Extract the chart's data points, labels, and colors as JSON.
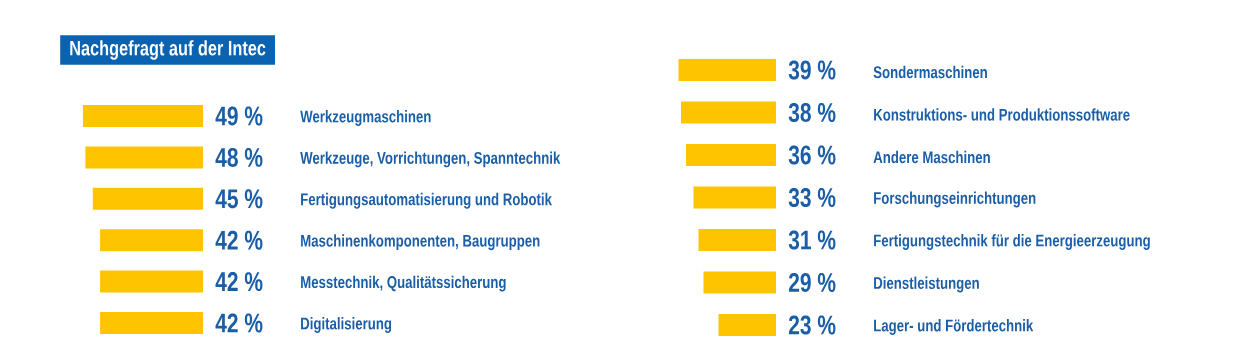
{
  "chart_data": [
    {
      "type": "bar",
      "orientation": "horizontal",
      "title": "Nachgefragt auf der Intec",
      "color": "#ffc400",
      "categories": [
        "Werkzeugmaschinen",
        "Werkzeuge, Vorrichtungen, Spanntechnik",
        "Fertigungsautomatisierung und Robotik",
        "Maschinenkomponenten, Baugruppen",
        "Messtechnik, Qualitätssicherung",
        "Digitalisierung"
      ],
      "values": [
        49,
        48,
        45,
        42,
        42,
        42
      ],
      "value_labels": [
        "49 %",
        "48 %",
        "45 %",
        "42 %",
        "42 %",
        "42 %"
      ]
    },
    {
      "type": "bar",
      "orientation": "horizontal",
      "color": "#ffc400",
      "categories": [
        "Sondermaschinen",
        "Konstruktions- und Produktionssoftware",
        "Andere Maschinen",
        "Forschungseinrichtungen",
        "Fertigungstechnik für die Energieerzeugung",
        "Dienstleistungen",
        "Lager- und Fördertechnik"
      ],
      "values": [
        39,
        38,
        36,
        33,
        31,
        29,
        23
      ],
      "value_labels": [
        "39 %",
        "38 %",
        "36 %",
        "33 %",
        "31 %",
        "29 %",
        "23 %"
      ]
    }
  ]
}
